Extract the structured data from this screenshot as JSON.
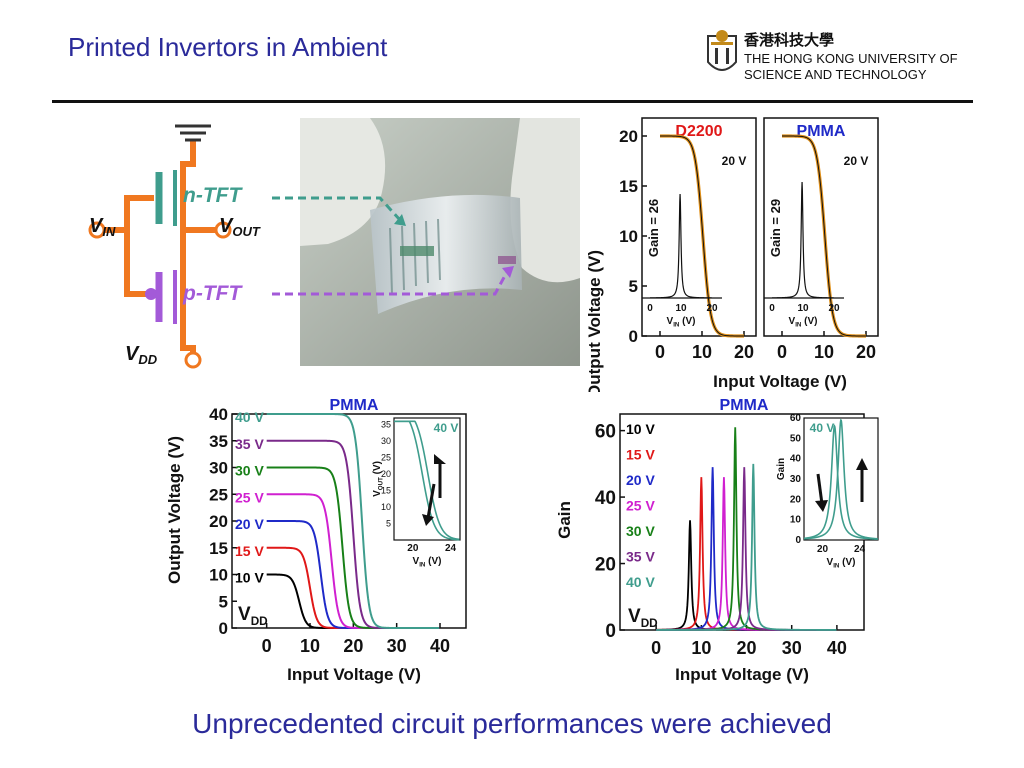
{
  "slide": {
    "title": "Printed Invertors in Ambient",
    "caption": "Unprecedented circuit performances were achieved"
  },
  "logo": {
    "chinese": "香港科技大學",
    "line1": "THE HONG KONG UNIVERSITY OF",
    "line2": "SCIENCE AND TECHNOLOGY"
  },
  "circuit": {
    "n_tft": "n-TFT",
    "p_tft": "p-TFT",
    "vin": {
      "main": "V",
      "sub": "IN"
    },
    "vout": {
      "main": "V",
      "sub": "OUT"
    },
    "vdd": {
      "main": "V",
      "sub": "DD"
    }
  },
  "colors": {
    "teal": "#3f9d8d",
    "purple": "#a35ad8",
    "wire": "#f07820",
    "blue_text": "#1f2ac8",
    "red_text": "#e01818",
    "curve_orange": "#e0901a"
  },
  "chart_data": [
    {
      "type": "line",
      "panel": "D2200",
      "title": "D2200",
      "title_color": "#e01818",
      "xlabel": "Input Voltage (V)",
      "ylabel": "Output Voltage (V)",
      "xlim": [
        0,
        20
      ],
      "ylim": [
        0,
        20
      ],
      "x_ticks": [
        0,
        10,
        20
      ],
      "y_ticks": [
        0,
        5,
        10,
        15,
        20
      ],
      "vdd_label": "20 V",
      "gain_label": "Gain = 26",
      "series": [
        {
          "name": "",
          "x": [
            0,
            4,
            7,
            8.5,
            9.5,
            10.5,
            11.5,
            13,
            16,
            20
          ],
          "y": [
            20,
            19.9,
            19.6,
            18.5,
            14,
            6,
            2,
            0.8,
            0.2,
            0.05
          ]
        }
      ],
      "inset": {
        "xlabel": {
          "main": "V",
          "sub": "IN",
          "unit": " (V)"
        },
        "x_ticks": [
          0,
          10,
          20
        ],
        "xlim": [
          0,
          20
        ],
        "gain_peak": 26,
        "gain_peak_x": 9.7
      }
    },
    {
      "type": "line",
      "panel": "PMMA-small",
      "title": "PMMA",
      "title_color": "#1f2ac8",
      "xlabel": "Input Voltage (V)",
      "ylabel": "",
      "xlim": [
        0,
        20
      ],
      "ylim": [
        0,
        20
      ],
      "x_ticks": [
        0,
        10,
        20
      ],
      "vdd_label": "20 V",
      "gain_label": "Gain = 29",
      "series": [
        {
          "name": "",
          "x": [
            0,
            4,
            7,
            8.5,
            9.5,
            10.5,
            11.5,
            13,
            16,
            20
          ],
          "y": [
            20,
            19.9,
            19.6,
            18.5,
            14,
            6,
            2,
            0.8,
            0.2,
            0.05
          ]
        }
      ],
      "inset": {
        "xlabel": {
          "main": "V",
          "sub": "IN",
          "unit": " (V)"
        },
        "x_ticks": [
          0,
          10,
          20
        ],
        "xlim": [
          0,
          20
        ],
        "gain_peak": 29,
        "gain_peak_x": 9.7
      }
    },
    {
      "type": "line",
      "panel": "PMMA-VTC",
      "title": "PMMA",
      "xlabel": "Input Voltage (V)",
      "ylabel": "Output Voltage (V)",
      "xlim": [
        -8,
        46
      ],
      "ylim": [
        0,
        40
      ],
      "x_ticks": [
        0,
        10,
        20,
        30,
        40
      ],
      "y_ticks": [
        0,
        5,
        10,
        15,
        20,
        25,
        30,
        35,
        40
      ],
      "legend_title": {
        "main": "V",
        "sub": "DD"
      },
      "series": [
        {
          "name": "10 V",
          "vdd": 10,
          "switch": 7.5,
          "color": "#000000"
        },
        {
          "name": "15 V",
          "vdd": 15,
          "switch": 10,
          "color": "#e01818"
        },
        {
          "name": "20 V",
          "vdd": 20,
          "switch": 12.5,
          "color": "#1f2ac8"
        },
        {
          "name": "25 V",
          "vdd": 25,
          "switch": 15,
          "color": "#d020d0"
        },
        {
          "name": "30 V",
          "vdd": 30,
          "switch": 17.5,
          "color": "#188018"
        },
        {
          "name": "35 V",
          "vdd": 35,
          "switch": 20,
          "color": "#7a2a8a"
        },
        {
          "name": "40 V",
          "vdd": 40,
          "switch": 22,
          "color": "#3f9d8d"
        }
      ],
      "inset": {
        "label": "40 V",
        "xlim": [
          18,
          25
        ],
        "ylim": [
          0,
          37
        ],
        "x_ticks": [
          20,
          24
        ],
        "y_ticks": [
          5,
          10,
          15,
          20,
          25,
          30,
          35
        ],
        "xlabel": {
          "main": "V",
          "sub": "IN",
          "unit": " (V)"
        },
        "ylabel": {
          "main": "V",
          "sub": "OUT",
          "unit": " (V)"
        }
      }
    },
    {
      "type": "line",
      "panel": "PMMA-Gain",
      "title": "PMMA",
      "xlabel": "Input Voltage (V)",
      "ylabel": "Gain",
      "xlim": [
        -8,
        46
      ],
      "ylim": [
        0,
        65
      ],
      "x_ticks": [
        0,
        10,
        20,
        30,
        40
      ],
      "y_ticks": [
        0,
        20,
        40,
        60
      ],
      "legend_title": {
        "main": "V",
        "sub": "DD"
      },
      "series": [
        {
          "name": "10 V",
          "peak": 33,
          "peak_x": 7.5,
          "color": "#000000"
        },
        {
          "name": "15 V",
          "peak": 46,
          "peak_x": 10,
          "color": "#e01818"
        },
        {
          "name": "20 V",
          "peak": 49,
          "peak_x": 12.5,
          "color": "#1f2ac8"
        },
        {
          "name": "25 V",
          "peak": 46,
          "peak_x": 15,
          "color": "#d020d0"
        },
        {
          "name": "30 V",
          "peak": 61,
          "peak_x": 17.5,
          "color": "#188018"
        },
        {
          "name": "35 V",
          "peak": 49,
          "peak_x": 19.5,
          "color": "#7a2a8a"
        },
        {
          "name": "40 V",
          "peak": 50,
          "peak_x": 21.5,
          "color": "#3f9d8d"
        }
      ],
      "inset": {
        "label": "40 V",
        "xlim": [
          18,
          26
        ],
        "ylim": [
          0,
          60
        ],
        "x_ticks": [
          20,
          24
        ],
        "y_ticks": [
          0,
          10,
          20,
          30,
          40,
          50,
          60
        ],
        "xlabel": {
          "main": "V",
          "sub": "IN",
          "unit": " (V)"
        },
        "ylabel": "Gain",
        "peaks": [
          56,
          59
        ],
        "peak_xs": [
          21.3,
          22.0
        ]
      }
    }
  ]
}
